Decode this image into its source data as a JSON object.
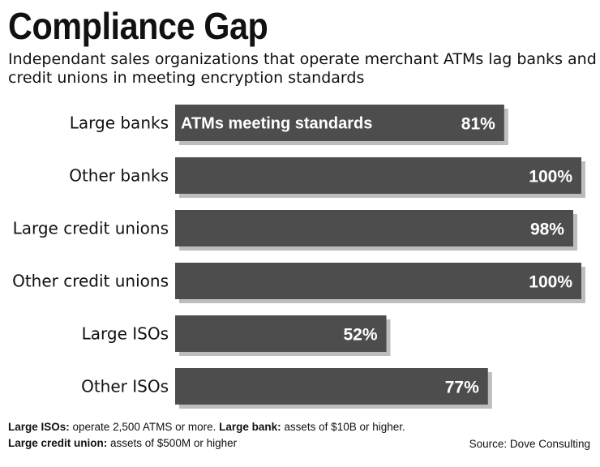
{
  "title": "Compliance Gap",
  "subtitle": "Independant sales organizations that operate merchant ATMs lag banks and credit unions in meeting encryption standards",
  "chart_data": {
    "type": "bar",
    "orientation": "horizontal",
    "categories": [
      "Large banks",
      "Other banks",
      "Large credit unions",
      "Other credit unions",
      "Large ISOs",
      "Other ISOs"
    ],
    "series": [
      {
        "name": "ATMs meeting standards",
        "values": [
          81,
          100,
          98,
          100,
          52,
          77
        ],
        "labels": [
          "81%",
          "100%",
          "98%",
          "100%",
          "52%",
          "77%"
        ]
      }
    ],
    "xlim": [
      0,
      100
    ],
    "grid": false,
    "legend": "inside-first-bar",
    "bar_color": "#4d4d4d",
    "shadow_color": "#bdbdbd"
  },
  "notes": [
    {
      "term": "Large ISOs:",
      "text": " operate 2,500 ATMS or more. "
    },
    {
      "term": "Large bank:",
      "text": " assets of $10B or higher. "
    },
    {
      "term": "Large credit union:",
      "text": " assets of $500M or higher"
    }
  ],
  "source": "Source: Dove Consulting"
}
